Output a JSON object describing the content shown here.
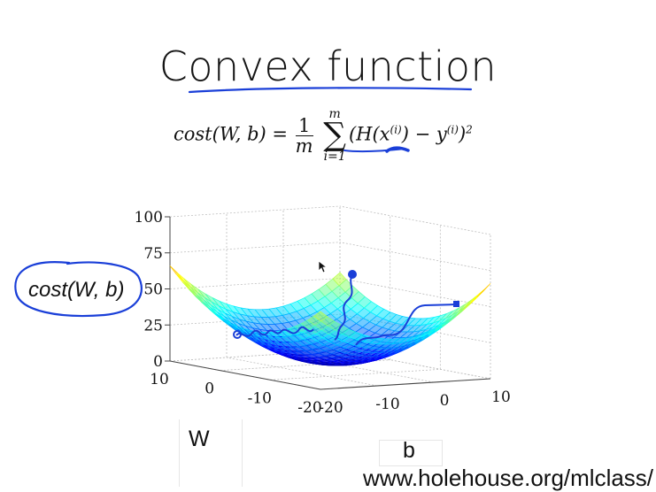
{
  "slide": {
    "title": "Convex function",
    "formula": {
      "lhs": "cost(W, b) =",
      "frac_num": "1",
      "frac_den": "m",
      "sum_upper": "m",
      "sum_lower": "i=1",
      "body_open": "(H(x",
      "sup1": "(i)",
      "body_mid": ") − y",
      "sup2": "(i)",
      "body_close": ")",
      "exponent": "2"
    },
    "hand_label_cost": "cost(W, b)",
    "label_w": "W",
    "label_b": "b",
    "url": "www.holehouse.org/mlclass/"
  },
  "chart_data": {
    "type": "surface",
    "z_ticks": [
      "0",
      "25",
      "50",
      "75",
      "100"
    ],
    "w_ticks": [
      "10",
      "0",
      "-10",
      "-20"
    ],
    "b_ticks": [
      "-20",
      "-10",
      "0",
      "10"
    ],
    "zlim": [
      0,
      100
    ],
    "wlim": [
      -20,
      10
    ],
    "blim": [
      -20,
      10
    ],
    "colormap": "jet",
    "grid": true
  },
  "colors": {
    "ink": "#1a3fd8",
    "text": "#111111"
  }
}
